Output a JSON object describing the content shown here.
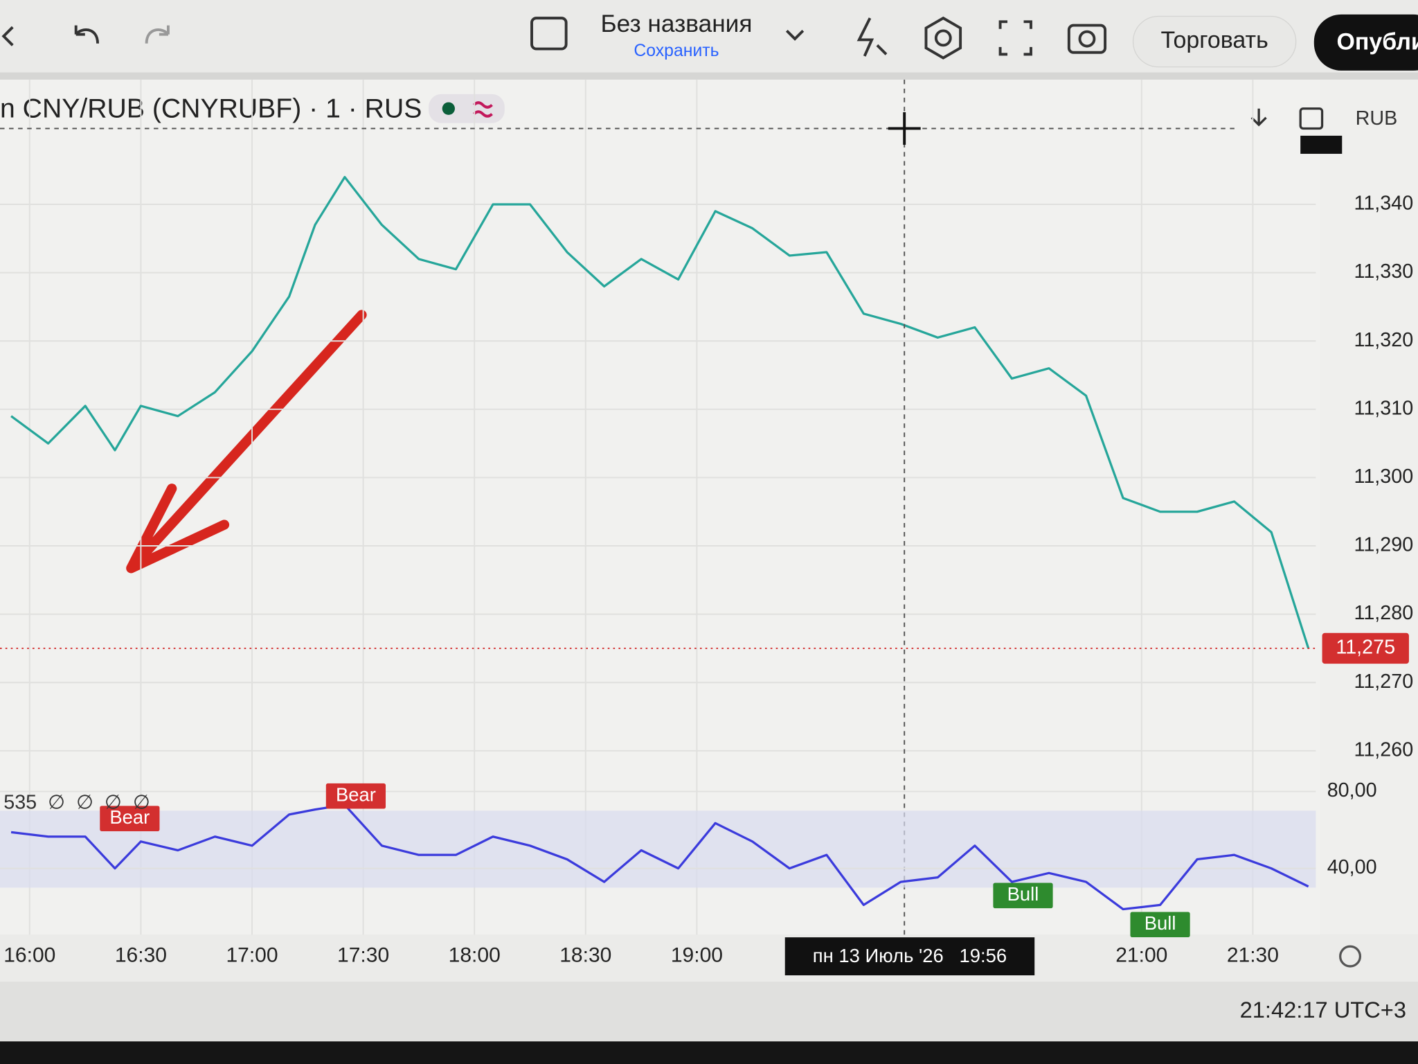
{
  "toolbar": {
    "title": "Без названия",
    "save": "Сохранить",
    "trade": "Торговать",
    "publish": "Опубли"
  },
  "status": {
    "clock": "21:42:17 UTC+3"
  },
  "chart_data": [
    {
      "type": "line",
      "title": "n CNY/RUB (CNYRUBF) · 1 · RUS",
      "currency": "RUB",
      "x": [
        955,
        965,
        975,
        983,
        990,
        1000,
        1010,
        1020,
        1030,
        1037,
        1045,
        1055,
        1065,
        1075,
        1085,
        1095,
        1105,
        1115,
        1125,
        1135,
        1145,
        1155,
        1165,
        1175,
        1185,
        1195,
        1205,
        1215,
        1225,
        1235,
        1245,
        1255,
        1265,
        1275,
        1285,
        1295,
        1305
      ],
      "xlim": [
        952,
        1307
      ],
      "xticks": [
        {
          "value": 960,
          "label": "16:00"
        },
        {
          "value": 990,
          "label": "16:30"
        },
        {
          "value": 1020,
          "label": "17:00"
        },
        {
          "value": 1050,
          "label": "17:30"
        },
        {
          "value": 1080,
          "label": "18:00"
        },
        {
          "value": 1110,
          "label": "18:30"
        },
        {
          "value": 1140,
          "label": "19:00"
        },
        {
          "value": 1260,
          "label": "21:00"
        },
        {
          "value": 1290,
          "label": "21:30"
        }
      ],
      "ylim": [
        11256,
        11358
      ],
      "yticks": [
        {
          "value": 11260,
          "label": "11,260"
        },
        {
          "value": 11270,
          "label": "11,270"
        },
        {
          "value": 11280,
          "label": "11,280"
        },
        {
          "value": 11290,
          "label": "11,290"
        },
        {
          "value": 11300,
          "label": "11,300"
        },
        {
          "value": 11310,
          "label": "11,310"
        },
        {
          "value": 11320,
          "label": "11,320"
        },
        {
          "value": 11330,
          "label": "11,330"
        },
        {
          "value": 11340,
          "label": "11,340"
        }
      ],
      "grid": true,
      "series": [
        {
          "color": "#26a69a",
          "values": [
            11309,
            11305,
            11310.5,
            11304,
            11310.5,
            11309,
            11312.5,
            11318.5,
            11326.5,
            11337,
            11344,
            11337,
            11332,
            11330.5,
            11340,
            11340,
            11333,
            11328,
            11332,
            11329,
            11339,
            11336.5,
            11332.5,
            11333,
            11324,
            11322.5,
            11320.5,
            11322,
            11314.5,
            11316,
            11312,
            11297,
            11295,
            11295,
            11296.5,
            11292,
            11275
          ]
        }
      ],
      "last_price": {
        "value": 11275,
        "label": "11,275",
        "color": "#d32f2f"
      },
      "crosshair": {
        "x": 1196,
        "label": "пн 13 Июль '26   19:56"
      }
    },
    {
      "type": "line",
      "title": "535  ∅  ∅  ∅  ∅",
      "x": [
        955,
        965,
        975,
        983,
        990,
        1000,
        1010,
        1020,
        1030,
        1037,
        1045,
        1055,
        1065,
        1075,
        1085,
        1095,
        1105,
        1115,
        1125,
        1135,
        1145,
        1155,
        1165,
        1175,
        1185,
        1195,
        1205,
        1215,
        1225,
        1235,
        1245,
        1255,
        1265,
        1275,
        1285,
        1295,
        1305
      ],
      "xlim": [
        952,
        1307
      ],
      "ylim": [
        7,
        86
      ],
      "yticks": [
        {
          "value": 40,
          "label": "40,00"
        },
        {
          "value": 80,
          "label": "80,00"
        }
      ],
      "band": [
        30,
        70
      ],
      "series": [
        {
          "color": "#3b3bdc",
          "values": [
            58.8,
            56.5,
            56.5,
            40,
            54,
            49.4,
            56.5,
            51.8,
            68,
            70.6,
            73,
            51.8,
            47,
            47,
            56.5,
            51.8,
            44.7,
            33,
            49.4,
            40,
            63.5,
            54,
            40,
            47,
            21,
            33,
            35.3,
            51.8,
            33,
            37.6,
            33,
            18.8,
            21,
            44.7,
            47,
            40,
            30.6
          ]
        }
      ],
      "annotations": [
        {
          "x": 987,
          "y": 65.9,
          "text": "Bear",
          "color": "#d32f2f"
        },
        {
          "x": 1048,
          "y": 77.6,
          "text": "Bear",
          "color": "#d32f2f"
        },
        {
          "x": 1228,
          "y": 25.9,
          "text": "Bull",
          "color": "#2e8b2e"
        },
        {
          "x": 1265,
          "y": 10.8,
          "text": "Bull",
          "color": "#2e8b2e"
        }
      ]
    }
  ]
}
